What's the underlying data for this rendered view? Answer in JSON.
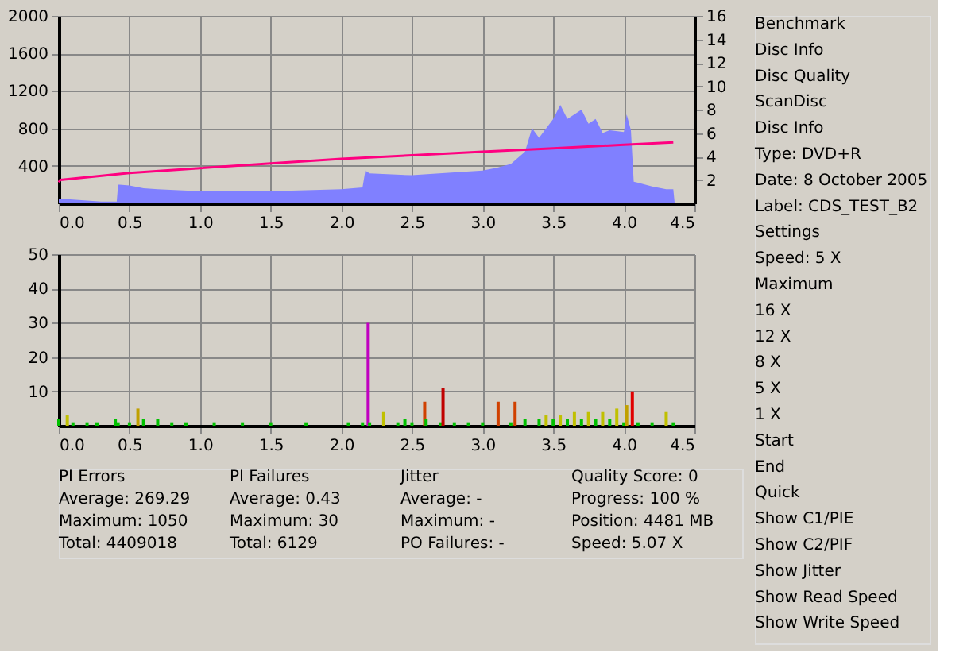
{
  "chart_data": [
    {
      "type": "area",
      "xlim": [
        0,
        4.5
      ],
      "ylim": [
        0,
        2000
      ],
      "y2lim": [
        0,
        16
      ],
      "xticks": [
        {
          "value": 0,
          "label": "0.0"
        },
        0.5,
        {
          "value": 1,
          "label": "1.0"
        },
        1.5,
        {
          "value": 2,
          "label": "2.0"
        },
        2.5,
        {
          "value": 3,
          "label": "3.0"
        },
        3.5,
        {
          "value": 4,
          "label": "4.0"
        },
        4.5
      ],
      "yticks": [
        400,
        800,
        1200,
        1600,
        2000
      ],
      "y2ticks": [
        2,
        4,
        6,
        8,
        10,
        12,
        14,
        16
      ],
      "grid": true,
      "series": [
        {
          "type": "area",
          "color": "#8080ff",
          "x": [
            0,
            0.1,
            0.2,
            0.3,
            0.41,
            0.42,
            0.43,
            0.5,
            0.6,
            0.7,
            1.0,
            1.5,
            2.0,
            2.15,
            2.17,
            2.2,
            2.5,
            2.8,
            3.0,
            3.1,
            3.2,
            3.3,
            3.35,
            3.4,
            3.5,
            3.55,
            3.6,
            3.65,
            3.7,
            3.75,
            3.8,
            3.85,
            3.9,
            4.0,
            4.02,
            4.05,
            4.07,
            4.1,
            4.2,
            4.3,
            4.35,
            4.36
          ],
          "values": [
            50,
            40,
            30,
            20,
            20,
            200,
            200,
            190,
            160,
            150,
            130,
            130,
            150,
            170,
            350,
            320,
            300,
            330,
            350,
            380,
            420,
            550,
            800,
            700,
            900,
            1050,
            900,
            950,
            1000,
            850,
            900,
            750,
            780,
            760,
            950,
            780,
            230,
            220,
            180,
            150,
            150,
            0
          ]
        },
        {
          "type": "line",
          "color": "#ff0080",
          "axis": "y2",
          "x": [
            0,
            0.01,
            0.5,
            1.0,
            1.5,
            2.0,
            2.5,
            3.0,
            3.5,
            4.0,
            4.35
          ],
          "values": [
            1.8,
            2.0,
            2.6,
            3.0,
            3.4,
            3.8,
            4.1,
            4.4,
            4.7,
            5.0,
            5.2
          ]
        }
      ]
    },
    {
      "type": "bar",
      "xlim": [
        0,
        4.5
      ],
      "ylim": [
        0,
        50
      ],
      "xticks": [
        {
          "value": 0,
          "label": "0.0"
        },
        0.5,
        {
          "value": 1,
          "label": "1.0"
        },
        1.5,
        {
          "value": 2,
          "label": "2.0"
        },
        2.5,
        {
          "value": 3,
          "label": "3.0"
        },
        3.5,
        {
          "value": 4,
          "label": "4.0"
        },
        4.5
      ],
      "yticks": [
        10,
        20,
        30,
        40,
        50
      ],
      "grid": true,
      "x": [
        0.0,
        0.06,
        0.1,
        0.2,
        0.27,
        0.4,
        0.42,
        0.5,
        0.56,
        0.6,
        0.7,
        0.8,
        0.9,
        1.1,
        1.3,
        1.5,
        1.75,
        2.05,
        2.15,
        2.19,
        2.2,
        2.3,
        2.4,
        2.45,
        2.5,
        2.59,
        2.6,
        2.7,
        2.72,
        2.8,
        2.9,
        3.0,
        3.1,
        3.11,
        3.2,
        3.23,
        3.3,
        3.4,
        3.45,
        3.5,
        3.55,
        3.6,
        3.65,
        3.7,
        3.75,
        3.8,
        3.85,
        3.9,
        3.95,
        4.0,
        4.02,
        4.06,
        4.1,
        4.2,
        4.3,
        4.35
      ],
      "values": [
        2,
        3,
        1,
        1,
        1,
        2,
        1,
        1,
        5,
        2,
        2,
        1,
        1,
        1,
        1,
        1,
        1,
        1,
        1,
        30,
        1,
        4,
        1,
        2,
        1,
        7,
        2,
        1,
        11,
        1,
        1,
        1,
        null,
        7,
        1,
        7,
        2,
        2,
        3,
        2,
        3,
        2,
        4,
        2,
        4,
        2,
        4,
        2,
        5,
        1,
        6,
        10,
        1,
        1,
        4,
        1
      ],
      "colors": [
        "#00c000",
        "#c0c000",
        "#00c000",
        "#00c000",
        "#00c000",
        "#00c000",
        "#00c000",
        "#00c000",
        "#c0a000",
        "#00c000",
        "#00c000",
        "#00c000",
        "#00c000",
        "#00c000",
        "#00c000",
        "#00c000",
        "#00c000",
        "#00c000",
        "#00c000",
        "#c000c0",
        "#00c000",
        "#c0c000",
        "#00c000",
        "#00c000",
        "#00c000",
        "#d04000",
        "#00c000",
        "#00c000",
        "#c00000",
        "#00c000",
        "#00c000",
        "#00c000",
        "#00c000",
        "#d04000",
        "#00c000",
        "#d04000",
        "#00c000",
        "#00c000",
        "#c0c000",
        "#00c000",
        "#c0c000",
        "#00c000",
        "#c0c000",
        "#00c000",
        "#c0c000",
        "#00c000",
        "#c0c000",
        "#00c000",
        "#c0c000",
        "#00c000",
        "#c0a000",
        "#e00000",
        "#00c000",
        "#00c000",
        "#c0c000",
        "#00c000"
      ]
    },
    {
      "type": "other",
      "annotations": [
        "PI Errors",
        "Average: 269.29",
        "Maximum: 1050",
        "Total: 4409018",
        "PI Failures",
        "Average: 0.43",
        "Maximum: 30",
        "Total: 6129",
        "Jitter",
        "Average: -",
        "Maximum: -",
        "PO Failures: -",
        "Quality Score: 0",
        "Progress: 100 %",
        "Position: 4481 MB",
        "Speed: 5.07 X"
      ]
    },
    {
      "type": "other",
      "annotations": [
        "Benchmark",
        "Disc Info",
        "Disc Quality",
        "ScanDisc",
        "Disc Info",
        "Type: DVD+R",
        "Date: 8 October 2005",
        "Label: CDS_TEST_B2",
        "Settings",
        "Speed: 5 X",
        "Maximum",
        "16 X",
        "12 X",
        "8 X",
        "5 X",
        "1 X",
        "Start",
        "End",
        "Quick",
        "Show C1/PIE",
        "Show C2/PIF",
        "Show Jitter",
        "Show Read Speed",
        "Show Write Speed"
      ]
    }
  ]
}
